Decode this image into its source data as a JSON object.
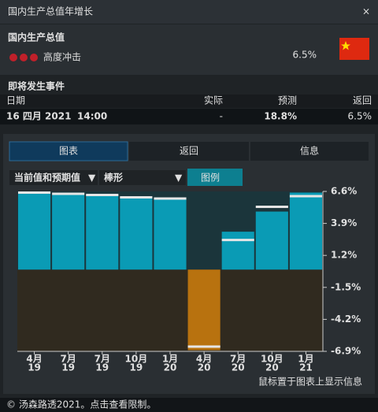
{
  "window": {
    "title": "国内生产总值年增长",
    "close": "×"
  },
  "header": {
    "title": "国内生产总值",
    "impact": "高度冲击",
    "value": "6.5%"
  },
  "events": {
    "title": "即将发生事件",
    "columns": [
      "日期",
      "实际",
      "预测",
      "返回"
    ],
    "rows": [
      [
        "16 四月 2021",
        "14:00",
        "-",
        "18.8%",
        "6.5%"
      ]
    ]
  },
  "tabs": [
    "图表",
    "返回",
    "信息"
  ],
  "controls": {
    "series": "当前值和预期值",
    "chart_type": "棒形",
    "legend": "图例"
  },
  "chart": {
    "type": "bar",
    "categories": [
      [
        "4月",
        "19"
      ],
      [
        "7月",
        "19"
      ],
      [
        "7月",
        "19"
      ],
      [
        "10月",
        "19"
      ],
      [
        "1月",
        "20"
      ],
      [
        "4月",
        "20"
      ],
      [
        "7月",
        "20"
      ],
      [
        "10月",
        "20"
      ],
      [
        "1月",
        "21"
      ]
    ],
    "series": [
      {
        "color": "#0a9bb5",
        "negative_color": "#b8720f",
        "values": [
          6.4,
          6.3,
          6.3,
          6.1,
          6.0,
          -6.8,
          3.2,
          4.9,
          6.5
        ]
      },
      {
        "color": "#e6e6e6",
        "values": [
          6.5,
          6.4,
          6.3,
          6.1,
          6.0,
          -6.5,
          2.5,
          5.3,
          6.2
        ]
      }
    ],
    "ylim": [
      -6.9,
      6.6
    ],
    "yticks": [
      {
        "value": 6.6,
        "label": "6.6%"
      },
      {
        "value": 3.9,
        "label": "3.9%"
      },
      {
        "value": 1.2,
        "label": "1.2%"
      },
      {
        "value": -1.5,
        "label": "-1.5%"
      },
      {
        "value": -4.2,
        "label": "-4.2%"
      },
      {
        "value": -6.9,
        "label": "-6.9%"
      }
    ]
  },
  "hint": "鼠标置于图表上显示信息",
  "footer": "© 汤森路透2021。点击查看限制。"
}
